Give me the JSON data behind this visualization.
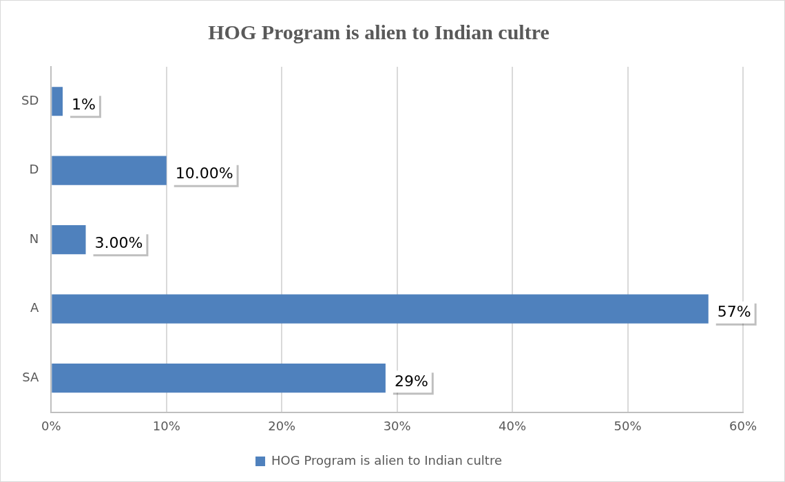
{
  "chart_data": {
    "type": "bar",
    "orientation": "horizontal",
    "title": "HOG Program is alien to Indian cultre",
    "categories": [
      "SD",
      "D",
      "N",
      "A",
      "SA"
    ],
    "series": [
      {
        "name": "HOG Program is alien to Indian cultre",
        "color": "#4f81bd",
        "values": [
          1,
          10,
          3,
          57,
          29
        ],
        "value_labels": [
          "1%",
          "10.00%",
          "3.00%",
          "57%",
          "29%"
        ]
      }
    ],
    "xlim": [
      0,
      60
    ],
    "xticks": [
      {
        "value": 0,
        "label": "0%"
      },
      {
        "value": 10,
        "label": "10%"
      },
      {
        "value": 20,
        "label": "20%"
      },
      {
        "value": 30,
        "label": "30%"
      },
      {
        "value": 40,
        "label": "40%"
      },
      {
        "value": 50,
        "label": "50%"
      },
      {
        "value": 60,
        "label": "60%"
      }
    ],
    "grid": "x",
    "legend": "bottom"
  }
}
